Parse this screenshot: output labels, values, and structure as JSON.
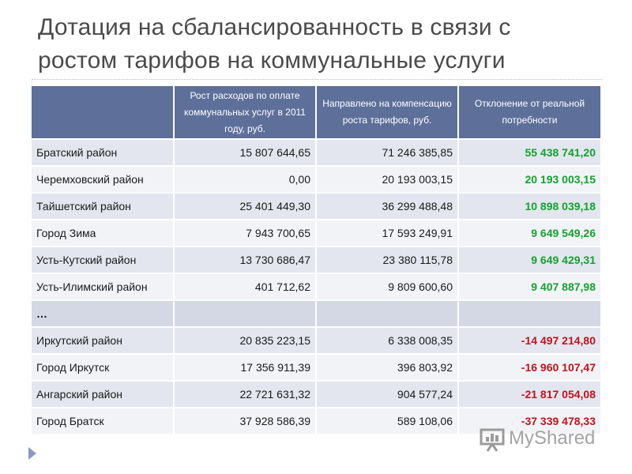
{
  "slide": {
    "title_line1": "Дотация на сбалансированность в связи с",
    "title_line2": "ростом тарифов на коммунальные услуги"
  },
  "table": {
    "headers": [
      "",
      "Рост расходов по оплате коммунальных услуг в 2011 году, руб.",
      "Направлено на компенсацию роста тарифов, руб.",
      "Отклонение от реальной потребности"
    ],
    "rows": [
      {
        "name": "Братский район",
        "expenses": "15 807 644,65",
        "compensation": "71 246 385,85",
        "deviation": "55 438 741,20"
      },
      {
        "name": "Черемховский район",
        "expenses": "0,00",
        "compensation": "20 193 003,15",
        "deviation": "20 193 003,15"
      },
      {
        "name": "Тайшетский район",
        "expenses": "25 401 449,30",
        "compensation": "36 299 488,48",
        "deviation": "10 898 039,18"
      },
      {
        "name": "Город Зима",
        "expenses": "7 943 700,65",
        "compensation": "17 593 249,91",
        "deviation": "9 649 549,26"
      },
      {
        "name": "Усть-Кутский район",
        "expenses": "13 730 686,47",
        "compensation": "23 380 115,78",
        "deviation": "9 649 429,31"
      },
      {
        "name": "Усть-Илимский район",
        "expenses": "401 712,62",
        "compensation": "9 809 600,60",
        "deviation": "9 407 887,98"
      },
      {
        "name": "…",
        "expenses": "",
        "compensation": "",
        "deviation": ""
      },
      {
        "name": "Иркутский район",
        "expenses": "20 835 223,15",
        "compensation": "6 338 008,35",
        "deviation": "-14 497 214,80"
      },
      {
        "name": "Город Иркутск",
        "expenses": "17 356 911,39",
        "compensation": "396 803,92",
        "deviation": "-16 960 107,47"
      },
      {
        "name": "Ангарский район",
        "expenses": "22 721 631,32",
        "compensation": "904 577,24",
        "deviation": "-21 817 054,08"
      },
      {
        "name": "Город Братск",
        "expenses": "37 928 586,39",
        "compensation": "589 108,06",
        "deviation": "-37 339 478,33"
      }
    ]
  },
  "logo": {
    "text": "MyShared"
  },
  "colors": {
    "header_bg": "#5e6f9a",
    "positive": "#15a12f",
    "negative": "#c0141d"
  }
}
